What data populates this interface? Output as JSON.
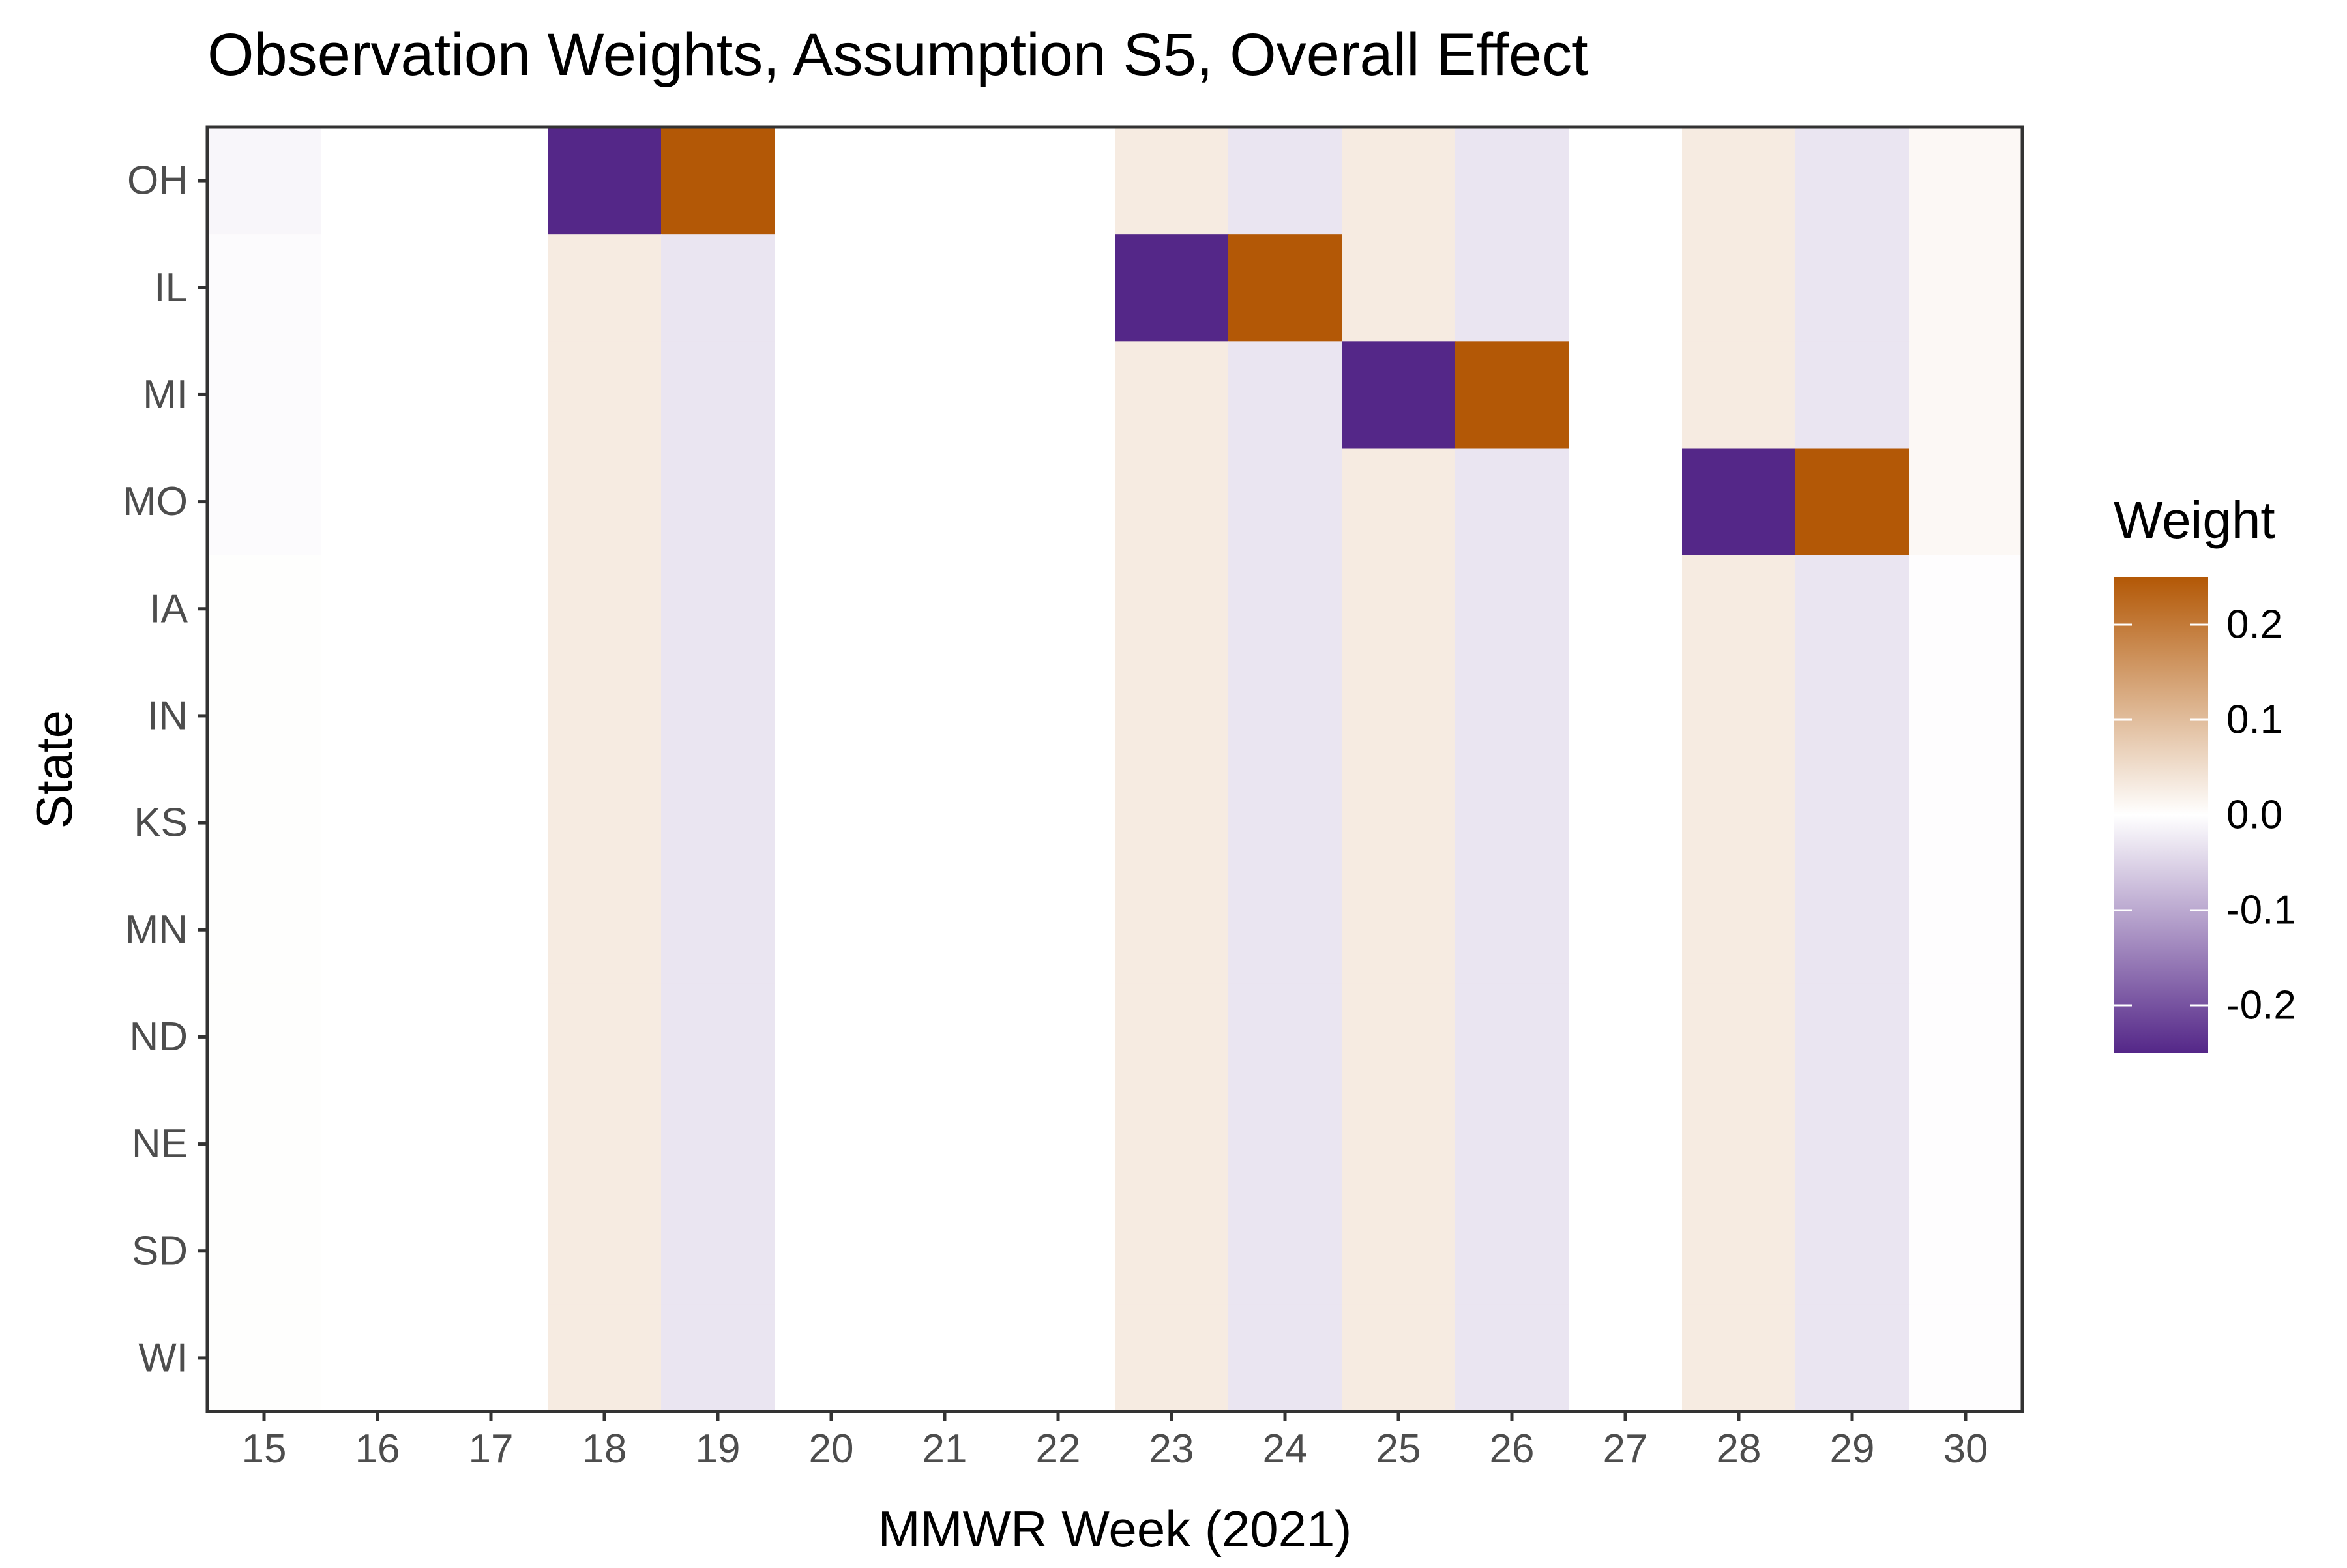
{
  "chart_data": {
    "type": "heatmap",
    "title": "Observation Weights, Assumption S5, Overall Effect",
    "xlabel": "MMWR Week (2021)",
    "ylabel": "State",
    "x_categories": [
      "15",
      "16",
      "17",
      "18",
      "19",
      "20",
      "21",
      "22",
      "23",
      "24",
      "25",
      "26",
      "27",
      "28",
      "29",
      "30"
    ],
    "y_categories": [
      "OH",
      "IL",
      "MI",
      "MO",
      "IA",
      "IN",
      "KS",
      "MN",
      "ND",
      "NE",
      "SD",
      "WI"
    ],
    "values": [
      [
        -0.01,
        0,
        0,
        -0.25,
        0.25,
        0,
        0,
        0,
        0.03,
        -0.03,
        0.03,
        -0.03,
        0,
        0.03,
        -0.03,
        0.01
      ],
      [
        -0.005,
        0,
        0,
        0.03,
        -0.03,
        0,
        0,
        0,
        -0.25,
        0.25,
        0.03,
        -0.03,
        0,
        0.03,
        -0.03,
        0.01
      ],
      [
        -0.005,
        0,
        0,
        0.03,
        -0.03,
        0,
        0,
        0,
        0.03,
        -0.03,
        -0.25,
        0.25,
        0,
        0.03,
        -0.03,
        0.01
      ],
      [
        -0.005,
        0,
        0,
        0.03,
        -0.03,
        0,
        0,
        0,
        0.03,
        -0.03,
        0.03,
        -0.03,
        0,
        -0.25,
        0.25,
        0.01
      ],
      [
        0.002,
        0,
        0,
        0.03,
        -0.03,
        0,
        0,
        0,
        0.03,
        -0.03,
        0.03,
        -0.03,
        0,
        0.03,
        -0.03,
        -0.002
      ],
      [
        0.002,
        0,
        0,
        0.03,
        -0.03,
        0,
        0,
        0,
        0.03,
        -0.03,
        0.03,
        -0.03,
        0,
        0.03,
        -0.03,
        -0.002
      ],
      [
        0.002,
        0,
        0,
        0.03,
        -0.03,
        0,
        0,
        0,
        0.03,
        -0.03,
        0.03,
        -0.03,
        0,
        0.03,
        -0.03,
        -0.002
      ],
      [
        0.002,
        0,
        0,
        0.03,
        -0.03,
        0,
        0,
        0,
        0.03,
        -0.03,
        0.03,
        -0.03,
        0,
        0.03,
        -0.03,
        -0.002
      ],
      [
        0.002,
        0,
        0,
        0.03,
        -0.03,
        0,
        0,
        0,
        0.03,
        -0.03,
        0.03,
        -0.03,
        0,
        0.03,
        -0.03,
        -0.002
      ],
      [
        0.002,
        0,
        0,
        0.03,
        -0.03,
        0,
        0,
        0,
        0.03,
        -0.03,
        0.03,
        -0.03,
        0,
        0.03,
        -0.03,
        -0.002
      ],
      [
        0.002,
        0,
        0,
        0.03,
        -0.03,
        0,
        0,
        0,
        0.03,
        -0.03,
        0.03,
        -0.03,
        0,
        0.03,
        -0.03,
        -0.002
      ],
      [
        0.002,
        0,
        0,
        0.03,
        -0.03,
        0,
        0,
        0,
        0.03,
        -0.03,
        0.03,
        -0.03,
        0,
        0.03,
        -0.03,
        -0.002
      ]
    ],
    "legend": {
      "title": "Weight",
      "position": "right",
      "range": [
        -0.25,
        0.25
      ],
      "ticks": [
        0.2,
        0.1,
        0.0,
        -0.1,
        -0.2
      ],
      "tick_labels": [
        "0.2",
        "0.1",
        "0.0",
        "-0.1",
        "-0.2"
      ]
    },
    "colors": {
      "low": "#542788",
      "mid": "#ffffff",
      "high": "#b35806"
    },
    "grid": false
  }
}
